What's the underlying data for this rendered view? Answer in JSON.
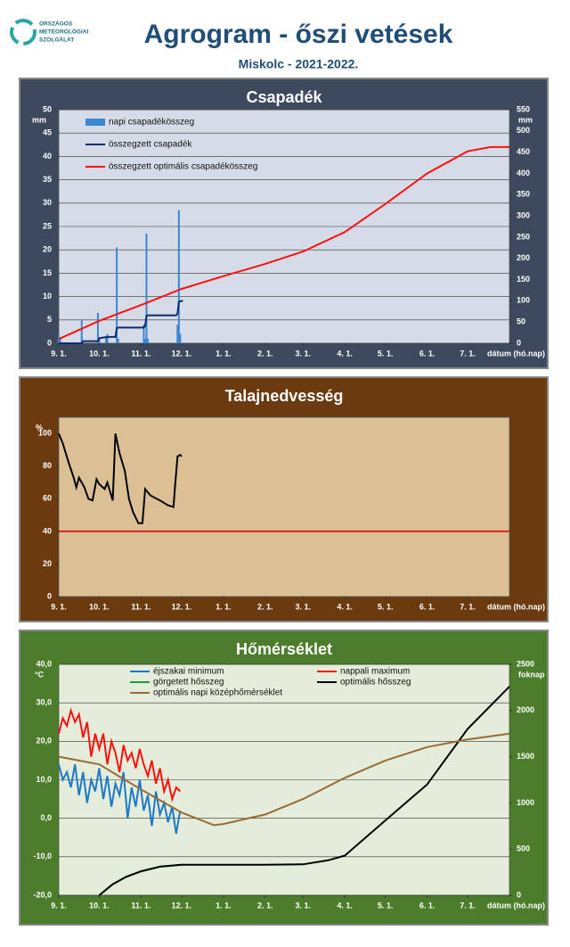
{
  "header": {
    "org": [
      "ORSZÁGOS",
      "METEOROLÓGIAI",
      "SZOLGÁLAT"
    ],
    "title": "Agrogram - őszi vetések",
    "subtitle": "Miskolc - 2021-2022."
  },
  "chart_data": [
    {
      "type": "bar",
      "title": "Csapadék",
      "ylabel": "mm",
      "y2label": "mm",
      "xlabel": "dátum (hó.nap)",
      "legend": "upper left",
      "grid": true,
      "xlim": [
        0,
        334
      ],
      "ylim": [
        0,
        50
      ],
      "y2lim": [
        0,
        550
      ],
      "xticks": [
        {
          "value": 0,
          "label": "9. 1."
        },
        {
          "value": 30,
          "label": "10. 1."
        },
        {
          "value": 61,
          "label": "11. 1."
        },
        {
          "value": 91,
          "label": "12. 1."
        },
        {
          "value": 122,
          "label": "1. 1."
        },
        {
          "value": 153,
          "label": "2. 1."
        },
        {
          "value": 181,
          "label": "3. 1."
        },
        {
          "value": 212,
          "label": "4. 1."
        },
        {
          "value": 242,
          "label": "5. 1."
        },
        {
          "value": 273,
          "label": "6. 1."
        },
        {
          "value": 303,
          "label": "7. 1."
        }
      ],
      "yticks": [
        0,
        5,
        10,
        15,
        20,
        25,
        30,
        35,
        40,
        45,
        50
      ],
      "y2ticks": [
        0,
        50,
        100,
        150,
        200,
        250,
        300,
        350,
        400,
        450,
        500,
        550
      ],
      "series": [
        {
          "name": "napi csapadékösszeg",
          "type": "bar",
          "color": "#3a86d0",
          "x": [
            0,
            1,
            17,
            29,
            30,
            35,
            36,
            43,
            44,
            63,
            64,
            65,
            66,
            88,
            89,
            90
          ],
          "values": [
            2,
            1,
            5,
            6.5,
            1,
            1.5,
            2,
            20.5,
            1,
            4,
            1,
            23.5,
            1,
            4,
            28.5,
            2
          ]
        },
        {
          "name": "összegzett csapadék",
          "type": "line",
          "axis": "y2",
          "color": "#0d2a6b",
          "x": [
            0,
            17,
            18,
            29,
            30,
            36,
            42,
            43,
            44,
            63,
            64,
            65,
            66,
            87,
            88,
            89,
            90,
            92
          ],
          "values": [
            0,
            0,
            5,
            5,
            12,
            15,
            15,
            36,
            37,
            37,
            41,
            65,
            66,
            66,
            70,
            97,
            99,
            100
          ]
        },
        {
          "name": "összegzett optimális  csapadékösszeg",
          "type": "line",
          "axis": "y2",
          "color": "#ff1010",
          "x": [
            0,
            30,
            61,
            91,
            122,
            153,
            181,
            212,
            242,
            273,
            303,
            320,
            334
          ],
          "values": [
            10,
            53,
            90,
            128,
            158,
            187,
            216,
            262,
            328,
            400,
            452,
            462,
            462
          ]
        }
      ]
    },
    {
      "type": "line",
      "title": "Talajnedvesség",
      "ylabel": "%",
      "xlabel": "dátum (hó.nap)",
      "grid": false,
      "xlim": [
        0,
        334
      ],
      "ylim": [
        0,
        110
      ],
      "xticks": [
        {
          "value": 0,
          "label": "9. 1."
        },
        {
          "value": 30,
          "label": "10. 1."
        },
        {
          "value": 61,
          "label": "11. 1."
        },
        {
          "value": 91,
          "label": "12. 1."
        },
        {
          "value": 122,
          "label": "1. 1."
        },
        {
          "value": 153,
          "label": "2. 1."
        },
        {
          "value": 181,
          "label": "3. 1."
        },
        {
          "value": 212,
          "label": "4. 1."
        },
        {
          "value": 242,
          "label": "5. 1."
        },
        {
          "value": 273,
          "label": "6. 1."
        },
        {
          "value": 303,
          "label": "7. 1."
        }
      ],
      "yticks": [
        0,
        20,
        40,
        60,
        80,
        100
      ],
      "series": [
        {
          "color": "#000000",
          "x": [
            0,
            3,
            7,
            11,
            13,
            15,
            19,
            22,
            25,
            28,
            30,
            34,
            36,
            40,
            42,
            45,
            49,
            52,
            55,
            59,
            62,
            64,
            68,
            75,
            81,
            85,
            86,
            88,
            90,
            91
          ],
          "values": [
            100,
            94,
            83,
            73,
            67,
            73,
            67,
            60,
            59,
            72,
            69,
            66,
            70,
            59,
            100,
            88,
            77,
            60,
            52,
            45,
            45,
            66,
            62,
            59,
            56,
            55,
            66,
            86,
            87,
            86
          ]
        },
        {
          "color": "#e02020",
          "x": [
            0,
            334
          ],
          "values": [
            40,
            40
          ]
        }
      ]
    },
    {
      "type": "line",
      "title": "Hőmérséklet",
      "ylabel": "°C",
      "y2label": "foknap",
      "xlabel": "dátum (hó.nap)",
      "legend": "upper left",
      "grid": true,
      "xlim": [
        0,
        334
      ],
      "ylim": [
        -20,
        40
      ],
      "y2lim": [
        0,
        2500
      ],
      "xticks": [
        {
          "value": 0,
          "label": "9. 1."
        },
        {
          "value": 30,
          "label": "10. 1."
        },
        {
          "value": 61,
          "label": "11. 1."
        },
        {
          "value": 91,
          "label": "12. 1."
        },
        {
          "value": 122,
          "label": "1. 1."
        },
        {
          "value": 153,
          "label": "2. 1."
        },
        {
          "value": 181,
          "label": "3. 1."
        },
        {
          "value": 212,
          "label": "4. 1."
        },
        {
          "value": 242,
          "label": "5. 1."
        },
        {
          "value": 273,
          "label": "6. 1."
        },
        {
          "value": 303,
          "label": "7. 1."
        }
      ],
      "yticks": [
        {
          "value": -20,
          "label": "-20,0"
        },
        {
          "value": -10,
          "label": "-10,0"
        },
        {
          "value": 0,
          "label": "0,0"
        },
        {
          "value": 10,
          "label": "10,0"
        },
        {
          "value": 20,
          "label": "20,0"
        },
        {
          "value": 30,
          "label": "30,0"
        },
        {
          "value": 40,
          "label": "40,0"
        }
      ],
      "y2ticks": [
        0,
        500,
        1000,
        1500,
        2000,
        2500
      ],
      "series": [
        {
          "name": "éjszakai minimum",
          "color": "#1e78c8",
          "x": [
            0,
            3,
            6,
            9,
            12,
            15,
            18,
            21,
            24,
            27,
            30,
            33,
            36,
            39,
            42,
            45,
            48,
            51,
            54,
            57,
            60,
            63,
            66,
            69,
            72,
            75,
            78,
            81,
            84,
            87,
            90
          ],
          "values": [
            14,
            10,
            12,
            8,
            14,
            6,
            12,
            4,
            10,
            7,
            13,
            5,
            11,
            3,
            9,
            6,
            12,
            0,
            8,
            3,
            10,
            2,
            6,
            -2,
            7,
            1,
            4,
            -1,
            3,
            -4,
            2
          ]
        },
        {
          "name": "nappali maximum",
          "color": "#ff1010",
          "x": [
            0,
            3,
            6,
            9,
            12,
            15,
            18,
            21,
            24,
            27,
            30,
            33,
            36,
            39,
            42,
            45,
            48,
            51,
            54,
            57,
            60,
            63,
            66,
            69,
            72,
            75,
            78,
            81,
            84,
            87,
            90
          ],
          "values": [
            22,
            26,
            24,
            28,
            25,
            27,
            21,
            25,
            16,
            22,
            18,
            22,
            14,
            20,
            17,
            12,
            19,
            15,
            17,
            13,
            18,
            14,
            11,
            15,
            9,
            13,
            7,
            10,
            5,
            8,
            7
          ]
        },
        {
          "name": "görgetett hősszeg",
          "axis": "y2",
          "color": "#1a9a3a",
          "x": [
            30,
            40,
            50,
            61,
            75,
            91
          ],
          "values": [
            0,
            120,
            200,
            260,
            310,
            330
          ]
        },
        {
          "name": "optimális hősszeg",
          "axis": "y2",
          "color": "#000000",
          "x": [
            30,
            40,
            50,
            61,
            75,
            91,
            122,
            153,
            181,
            200,
            212,
            242,
            273,
            303,
            334
          ],
          "values": [
            0,
            120,
            200,
            260,
            310,
            330,
            330,
            330,
            335,
            380,
            430,
            810,
            1200,
            1800,
            2260
          ]
        },
        {
          "name": "optimális napi középhőmérséklet",
          "color": "#9a6a35",
          "x": [
            0,
            30,
            61,
            91,
            115,
            122,
            153,
            181,
            212,
            242,
            273,
            303,
            334
          ],
          "values": [
            16,
            14,
            7.5,
            1.5,
            -1.8,
            -1.5,
            1,
            5,
            10.5,
            15,
            18.5,
            20.5,
            22
          ]
        }
      ]
    }
  ]
}
